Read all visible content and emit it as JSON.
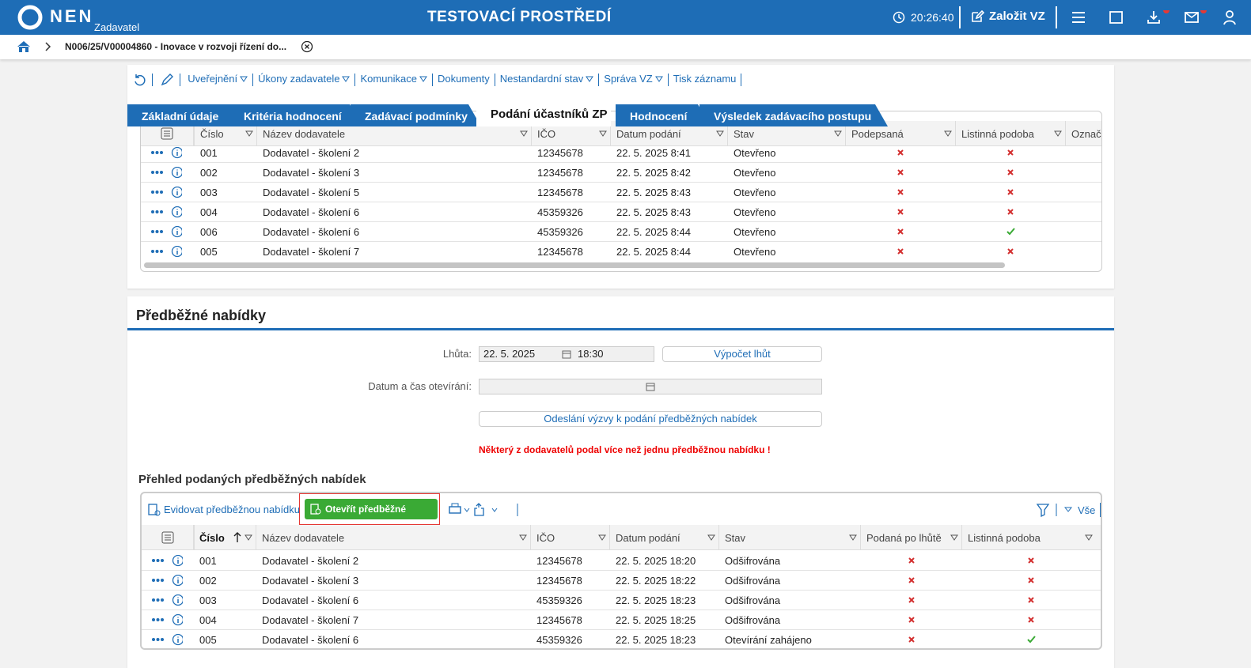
{
  "header": {
    "logo": "NEN",
    "logo_sub": "Zadavatel",
    "title": "TESTOVACÍ PROSTŘEDÍ",
    "time": "20:26:40",
    "create_button": "Založit VZ"
  },
  "breadcrumb": {
    "item": "N006/25/V00004860 - Inovace v rozvoji řízení do..."
  },
  "toolbar": [
    "Uveřejnění",
    "Úkony zadavatele",
    "Komunikace",
    "Dokumenty",
    "Nestandardní stav",
    "Správa VZ",
    "Tisk záznamu"
  ],
  "tabs": [
    "Základní údaje",
    "Kritéria hodnocení",
    "Zadávací podmínky",
    "Podání účastníků ZP",
    "Hodnocení",
    "Výsledek zadávacího postupu"
  ],
  "active_tab": 3,
  "offers_table": {
    "columns": [
      "Číslo",
      "Název dodavatele",
      "IČO",
      "Datum podání",
      "Stav",
      "Podepsaná",
      "Listinná podoba",
      "Označ"
    ],
    "rows": [
      [
        "001",
        "Dodavatel - školení 2",
        "12345678",
        "22. 5. 2025 8:41",
        "Otevřeno",
        false,
        false
      ],
      [
        "002",
        "Dodavatel - školení 3",
        "12345678",
        "22. 5. 2025 8:42",
        "Otevřeno",
        false,
        false
      ],
      [
        "003",
        "Dodavatel - školení 5",
        "12345678",
        "22. 5. 2025 8:43",
        "Otevřeno",
        false,
        false
      ],
      [
        "004",
        "Dodavatel - školení 6",
        "45359326",
        "22. 5. 2025 8:43",
        "Otevřeno",
        false,
        false
      ],
      [
        "006",
        "Dodavatel - školení 6",
        "45359326",
        "22. 5. 2025 8:44",
        "Otevřeno",
        false,
        true
      ],
      [
        "005",
        "Dodavatel - školení 7",
        "12345678",
        "22. 5. 2025 8:44",
        "Otevřeno",
        false,
        false
      ]
    ]
  },
  "preliminary": {
    "title": "Předběžné nabídky",
    "deadline_label": "Lhůta:",
    "deadline_date": "22. 5. 2025",
    "deadline_time": "18:30",
    "calc_button": "Výpočet lhůt",
    "opening_label": "Datum a čas otevírání:",
    "send_button": "Odeslání výzvy k podání předběžných nabídek",
    "warning": "Některý z dodavatelů podal více než jednu předběžnou nabídku !",
    "overview_title": "Přehled podaných předběžných nabídek",
    "register_button": "Evidovat předběžnou nabídku",
    "open_button": "Otevřít předběžné nabídky",
    "filter_all": "Vše",
    "table": {
      "columns": [
        "Číslo",
        "Název dodavatele",
        "IČO",
        "Datum podání",
        "Stav",
        "Podaná po lhůtě",
        "Listinná podoba"
      ],
      "rows": [
        [
          "001",
          "Dodavatel - školení 2",
          "12345678",
          "22. 5. 2025 18:20",
          "Odšifrována",
          false,
          false
        ],
        [
          "002",
          "Dodavatel - školení 3",
          "12345678",
          "22. 5. 2025 18:22",
          "Odšifrována",
          false,
          false
        ],
        [
          "003",
          "Dodavatel - školení 6",
          "45359326",
          "22. 5. 2025 18:23",
          "Odšifrována",
          false,
          false
        ],
        [
          "004",
          "Dodavatel - školení 7",
          "12345678",
          "22. 5. 2025 18:25",
          "Odšifrována",
          false,
          false
        ],
        [
          "005",
          "Dodavatel - školení 6",
          "45359326",
          "22. 5. 2025 18:23",
          "Otevírání zahájeno",
          false,
          true
        ]
      ]
    }
  }
}
